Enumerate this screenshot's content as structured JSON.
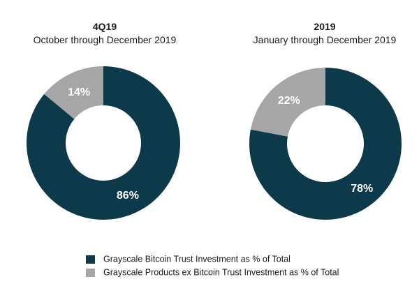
{
  "chart_data": [
    {
      "type": "pie",
      "donut": true,
      "title": "4Q19",
      "subtitle": "October through December 2019",
      "categories": [
        "Grayscale Bitcoin Trust Investment as % of Total",
        "Grayscale Products ex Bitcoin Trust Investment as % of Total"
      ],
      "values": [
        86,
        14
      ],
      "labels": [
        "86%",
        "14%"
      ]
    },
    {
      "type": "pie",
      "donut": true,
      "title": "2019",
      "subtitle": "January through December 2019",
      "categories": [
        "Grayscale Bitcoin Trust Investment as % of Total",
        "Grayscale Products ex Bitcoin Trust Investment as % of Total"
      ],
      "values": [
        78,
        22
      ],
      "labels": [
        "78%",
        "22%"
      ]
    }
  ],
  "legend": [
    {
      "label": "Grayscale Bitcoin Trust Investment as % of Total",
      "color": "#0d3a4a"
    },
    {
      "label": "Grayscale Products ex Bitcoin Trust Investment as % of Total",
      "color": "#a6a6a6"
    }
  ],
  "colors": {
    "primary": "#0d3a4a",
    "secondary": "#a6a6a6",
    "label_text": "#ffffff"
  }
}
